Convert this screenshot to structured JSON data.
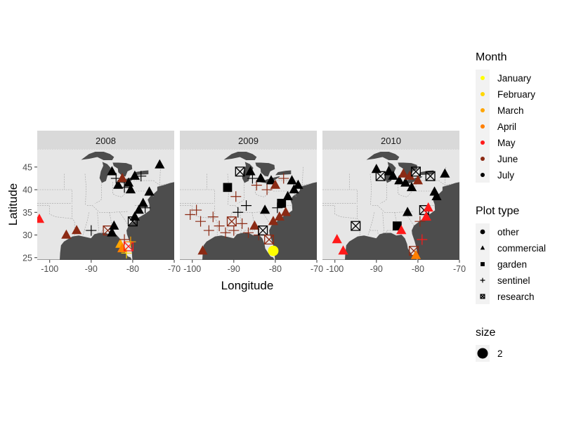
{
  "chart_data": {
    "type": "scatter",
    "title": "",
    "xlabel": "Longitude",
    "ylabel": "Latitude",
    "xlim": [
      -103,
      -70
    ],
    "ylim": [
      24.5,
      49
    ],
    "x_ticks": [
      -100,
      -90,
      -80,
      -70
    ],
    "x_tick_labels": [
      "-100",
      "-90",
      "-80",
      "-70"
    ],
    "y_ticks": [
      25,
      30,
      35,
      40,
      45
    ],
    "y_tick_labels": [
      "25",
      "30",
      "35",
      "40",
      "45"
    ],
    "grid": false,
    "background": "map of eastern North America",
    "legend_position": "right",
    "panels": [
      {
        "label": "2008",
        "points": [
          {
            "x": -102.5,
            "y": 33.5,
            "month": "May",
            "shape": "commercial"
          },
          {
            "x": -96,
            "y": 30,
            "month": "June",
            "shape": "commercial"
          },
          {
            "x": -93.5,
            "y": 31,
            "month": "June",
            "shape": "commercial"
          },
          {
            "x": -90,
            "y": 31,
            "month": "July",
            "shape": "sentinel"
          },
          {
            "x": -86,
            "y": 31,
            "month": "June",
            "shape": "research"
          },
          {
            "x": -85,
            "y": 30.5,
            "month": "July",
            "shape": "commercial"
          },
          {
            "x": -84.5,
            "y": 32,
            "month": "July",
            "shape": "commercial"
          },
          {
            "x": -83,
            "y": 28,
            "month": "March",
            "shape": "commercial"
          },
          {
            "x": -82.5,
            "y": 27,
            "month": "April",
            "shape": "commercial"
          },
          {
            "x": -82,
            "y": 29,
            "month": "June",
            "shape": "sentinel"
          },
          {
            "x": -81.5,
            "y": 26,
            "month": "February",
            "shape": "sentinel"
          },
          {
            "x": -81,
            "y": 27.5,
            "month": "May",
            "shape": "research"
          },
          {
            "x": -80.5,
            "y": 28.5,
            "month": "March",
            "shape": "sentinel"
          },
          {
            "x": -80,
            "y": 33,
            "month": "July",
            "shape": "research"
          },
          {
            "x": -79.5,
            "y": 34,
            "month": "July",
            "shape": "commercial"
          },
          {
            "x": -78.5,
            "y": 35.5,
            "month": "July",
            "shape": "commercial"
          },
          {
            "x": -77,
            "y": 36,
            "month": "July",
            "shape": "sentinel"
          },
          {
            "x": -77.5,
            "y": 37,
            "month": "July",
            "shape": "commercial"
          },
          {
            "x": -76,
            "y": 39.5,
            "month": "July",
            "shape": "commercial"
          },
          {
            "x": -85,
            "y": 44,
            "month": "July",
            "shape": "commercial"
          },
          {
            "x": -84,
            "y": 42.5,
            "month": "July",
            "shape": "sentinel"
          },
          {
            "x": -83.5,
            "y": 41,
            "month": "July",
            "shape": "commercial"
          },
          {
            "x": -82.5,
            "y": 42.5,
            "month": "June",
            "shape": "commercial"
          },
          {
            "x": -82,
            "y": 40.5,
            "month": "July",
            "shape": "sentinel"
          },
          {
            "x": -81,
            "y": 41.5,
            "month": "July",
            "shape": "commercial"
          },
          {
            "x": -80.5,
            "y": 40,
            "month": "July",
            "shape": "commercial"
          },
          {
            "x": -79.5,
            "y": 43,
            "month": "July",
            "shape": "commercial"
          },
          {
            "x": -78,
            "y": 43,
            "month": "July",
            "shape": "sentinel"
          },
          {
            "x": -73.5,
            "y": 45.5,
            "month": "July",
            "shape": "commercial"
          }
        ]
      },
      {
        "label": "2009",
        "points": [
          {
            "x": -100.5,
            "y": 34.5,
            "month": "June",
            "shape": "sentinel"
          },
          {
            "x": -99,
            "y": 35.5,
            "month": "June",
            "shape": "sentinel"
          },
          {
            "x": -98,
            "y": 33,
            "month": "June",
            "shape": "sentinel"
          },
          {
            "x": -97.5,
            "y": 26.5,
            "month": "June",
            "shape": "commercial"
          },
          {
            "x": -96,
            "y": 31,
            "month": "June",
            "shape": "sentinel"
          },
          {
            "x": -95,
            "y": 34,
            "month": "June",
            "shape": "sentinel"
          },
          {
            "x": -93.5,
            "y": 32,
            "month": "June",
            "shape": "sentinel"
          },
          {
            "x": -92,
            "y": 30.5,
            "month": "June",
            "shape": "sentinel"
          },
          {
            "x": -91.5,
            "y": 40.5,
            "month": "July",
            "shape": "garden"
          },
          {
            "x": -90.5,
            "y": 33,
            "month": "June",
            "shape": "research"
          },
          {
            "x": -90,
            "y": 31,
            "month": "June",
            "shape": "sentinel"
          },
          {
            "x": -89.5,
            "y": 38.5,
            "month": "June",
            "shape": "sentinel"
          },
          {
            "x": -89,
            "y": 35,
            "month": "July",
            "shape": "sentinel"
          },
          {
            "x": -88.5,
            "y": 44,
            "month": "July",
            "shape": "research"
          },
          {
            "x": -88,
            "y": 32.5,
            "month": "June",
            "shape": "sentinel"
          },
          {
            "x": -87,
            "y": 36.5,
            "month": "July",
            "shape": "sentinel"
          },
          {
            "x": -86.5,
            "y": 30.5,
            "month": "June",
            "shape": "sentinel"
          },
          {
            "x": -86,
            "y": 44,
            "month": "July",
            "shape": "commercial"
          },
          {
            "x": -85.5,
            "y": 42.5,
            "month": "July",
            "shape": "sentinel"
          },
          {
            "x": -85,
            "y": 32,
            "month": "June",
            "shape": "commercial"
          },
          {
            "x": -84.5,
            "y": 41,
            "month": "June",
            "shape": "sentinel"
          },
          {
            "x": -84,
            "y": 30,
            "month": "June",
            "shape": "sentinel"
          },
          {
            "x": -83.5,
            "y": 42.5,
            "month": "July",
            "shape": "commercial"
          },
          {
            "x": -83,
            "y": 31,
            "month": "July",
            "shape": "research"
          },
          {
            "x": -82.5,
            "y": 35.5,
            "month": "July",
            "shape": "commercial"
          },
          {
            "x": -82,
            "y": 40,
            "month": "June",
            "shape": "sentinel"
          },
          {
            "x": -81.5,
            "y": 29,
            "month": "June",
            "shape": "research"
          },
          {
            "x": -81,
            "y": 42,
            "month": "July",
            "shape": "commercial"
          },
          {
            "x": -80.5,
            "y": 26.5,
            "month": "January",
            "shape": "other"
          },
          {
            "x": -80.5,
            "y": 33,
            "month": "June",
            "shape": "commercial"
          },
          {
            "x": -80,
            "y": 41,
            "month": "June",
            "shape": "commercial"
          },
          {
            "x": -79.5,
            "y": 36,
            "month": "July",
            "shape": "sentinel"
          },
          {
            "x": -79,
            "y": 34,
            "month": "June",
            "shape": "commercial"
          },
          {
            "x": -78.5,
            "y": 37,
            "month": "July",
            "shape": "garden"
          },
          {
            "x": -78,
            "y": 42.5,
            "month": "June",
            "shape": "sentinel"
          },
          {
            "x": -77.5,
            "y": 35,
            "month": "June",
            "shape": "commercial"
          },
          {
            "x": -77,
            "y": 38.5,
            "month": "July",
            "shape": "commercial"
          },
          {
            "x": -76,
            "y": 42,
            "month": "July",
            "shape": "commercial"
          },
          {
            "x": -75.5,
            "y": 40,
            "month": "July",
            "shape": "commercial"
          },
          {
            "x": -74.5,
            "y": 41,
            "month": "July",
            "shape": "commercial"
          }
        ]
      },
      {
        "label": "2010",
        "points": [
          {
            "x": -99.5,
            "y": 29,
            "month": "May",
            "shape": "commercial"
          },
          {
            "x": -98,
            "y": 26.5,
            "month": "May",
            "shape": "commercial"
          },
          {
            "x": -95,
            "y": 32,
            "month": "July",
            "shape": "research"
          },
          {
            "x": -90,
            "y": 44.5,
            "month": "July",
            "shape": "commercial"
          },
          {
            "x": -89,
            "y": 43,
            "month": "July",
            "shape": "research"
          },
          {
            "x": -87,
            "y": 44,
            "month": "July",
            "shape": "commercial"
          },
          {
            "x": -86,
            "y": 43,
            "month": "July",
            "shape": "commercial"
          },
          {
            "x": -85,
            "y": 32,
            "month": "July",
            "shape": "garden"
          },
          {
            "x": -84.5,
            "y": 42,
            "month": "July",
            "shape": "commercial"
          },
          {
            "x": -84,
            "y": 31,
            "month": "May",
            "shape": "commercial"
          },
          {
            "x": -83.5,
            "y": 43.5,
            "month": "June",
            "shape": "commercial"
          },
          {
            "x": -83,
            "y": 41.5,
            "month": "July",
            "shape": "commercial"
          },
          {
            "x": -82.5,
            "y": 35,
            "month": "July",
            "shape": "commercial"
          },
          {
            "x": -82,
            "y": 43,
            "month": "June",
            "shape": "commercial"
          },
          {
            "x": -81.5,
            "y": 40.5,
            "month": "July",
            "shape": "commercial"
          },
          {
            "x": -81,
            "y": 26.5,
            "month": "June",
            "shape": "research"
          },
          {
            "x": -80.5,
            "y": 44,
            "month": "July",
            "shape": "research"
          },
          {
            "x": -80.5,
            "y": 25.5,
            "month": "April",
            "shape": "commercial"
          },
          {
            "x": -80,
            "y": 42,
            "month": "June",
            "shape": "commercial"
          },
          {
            "x": -79.5,
            "y": 33,
            "month": "June",
            "shape": "sentinel"
          },
          {
            "x": -79,
            "y": 29,
            "month": "May",
            "shape": "sentinel"
          },
          {
            "x": -78.5,
            "y": 35.5,
            "month": "July",
            "shape": "research"
          },
          {
            "x": -78,
            "y": 34,
            "month": "May",
            "shape": "commercial"
          },
          {
            "x": -77.5,
            "y": 36,
            "month": "May",
            "shape": "commercial"
          },
          {
            "x": -77,
            "y": 43,
            "month": "July",
            "shape": "research"
          },
          {
            "x": -76,
            "y": 39.5,
            "month": "July",
            "shape": "commercial"
          },
          {
            "x": -75.5,
            "y": 38.5,
            "month": "July",
            "shape": "commercial"
          },
          {
            "x": -73.5,
            "y": 43.5,
            "month": "July",
            "shape": "commercial"
          }
        ]
      }
    ]
  },
  "legend": {
    "month_title": "Month",
    "months": [
      {
        "label": "January",
        "color": "#FFFF00"
      },
      {
        "label": "February",
        "color": "#FFD700"
      },
      {
        "label": "March",
        "color": "#FFA500"
      },
      {
        "label": "April",
        "color": "#FF7F00"
      },
      {
        "label": "May",
        "color": "#FF1A1A"
      },
      {
        "label": "June",
        "color": "#8B2A14"
      },
      {
        "label": "July",
        "color": "#000000"
      }
    ],
    "shape_title": "Plot type",
    "shapes": [
      {
        "label": "other",
        "shape": "other"
      },
      {
        "label": "commercial",
        "shape": "commercial"
      },
      {
        "label": "garden",
        "shape": "garden"
      },
      {
        "label": "sentinel",
        "shape": "sentinel"
      },
      {
        "label": "research",
        "shape": "research"
      }
    ],
    "size_title": "size",
    "size_label": "2"
  },
  "colors": {
    "land": "#E6E6E6",
    "water": "#4D4D4D",
    "strip": "#D9D9D9",
    "borders": "#A0A0A0",
    "axis_text": "#4D4D4D"
  }
}
